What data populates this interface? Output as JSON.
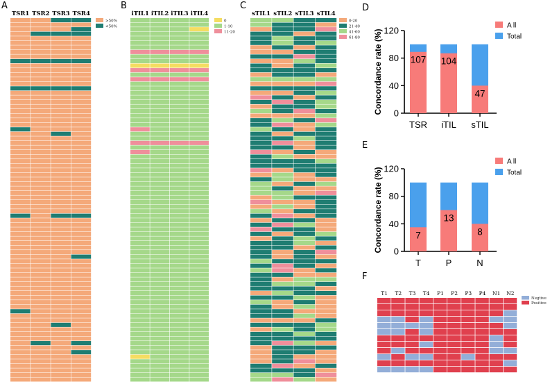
{
  "colors": {
    "orange": "#f4a97a",
    "teal": "#1f7d72",
    "green": "#a5d88a",
    "yellow": "#f5dd62",
    "pink": "#ef8f9b",
    "red_bar": "#f77b79",
    "blue_bar": "#4aa0ec",
    "f_red": "#e0404e",
    "f_blue": "#93aed8"
  },
  "chart_data": [
    {
      "id": "A",
      "type": "heatmap",
      "panel_label": "A",
      "columns": [
        "TSR1",
        "TSR2",
        "TSR3",
        "TSR4"
      ],
      "legend": [
        {
          "label": ">50%",
          "color": "#f4a97a"
        },
        {
          "label": "<50%",
          "color": "#1f7d72"
        }
      ],
      "rows": 80,
      "cells": [
        {
          "row": 0,
          "col": 2,
          "level": 1
        },
        {
          "row": 0,
          "col": 3,
          "level": 1
        },
        {
          "row": 2,
          "col": 3,
          "level": 1
        },
        {
          "row": 3,
          "col": 1,
          "level": 1
        },
        {
          "row": 3,
          "col": 2,
          "level": 1
        },
        {
          "row": 3,
          "col": 3,
          "level": 1
        },
        {
          "row": 9,
          "col": 0,
          "level": 1
        },
        {
          "row": 9,
          "col": 1,
          "level": 1
        },
        {
          "row": 9,
          "col": 2,
          "level": 1
        },
        {
          "row": 9,
          "col": 3,
          "level": 1
        },
        {
          "row": 15,
          "col": 0,
          "level": 1
        },
        {
          "row": 15,
          "col": 1,
          "level": 1
        },
        {
          "row": 15,
          "col": 2,
          "level": 1
        },
        {
          "row": 15,
          "col": 3,
          "level": 1
        },
        {
          "row": 24,
          "col": 0,
          "level": 1
        },
        {
          "row": 25,
          "col": 2,
          "level": 1
        },
        {
          "row": 43,
          "col": 0,
          "level": 1
        },
        {
          "row": 43,
          "col": 2,
          "level": 1
        },
        {
          "row": 43,
          "col": 3,
          "level": 1
        },
        {
          "row": 52,
          "col": 3,
          "level": 1
        },
        {
          "row": 64,
          "col": 0,
          "level": 1
        },
        {
          "row": 67,
          "col": 2,
          "level": 1
        },
        {
          "row": 71,
          "col": 1,
          "level": 1
        },
        {
          "row": 71,
          "col": 3,
          "level": 1
        },
        {
          "row": 73,
          "col": 3,
          "level": 1
        }
      ]
    },
    {
      "id": "B",
      "type": "heatmap",
      "panel_label": "B",
      "columns": [
        "iTIL1",
        "iTIL2",
        "iTIL3",
        "iTIL4"
      ],
      "legend": [
        {
          "label": "0",
          "color": "#f5dd62"
        },
        {
          "label": "1-10",
          "color": "#a5d88a"
        },
        {
          "label": "11-20",
          "color": "#ef8f9b"
        }
      ],
      "rows": 80,
      "cells": [
        {
          "row": 2,
          "col": 3,
          "level": 0
        },
        {
          "row": 7,
          "col": 0,
          "level": 2
        },
        {
          "row": 7,
          "col": 1,
          "level": 2
        },
        {
          "row": 7,
          "col": 2,
          "level": 2
        },
        {
          "row": 7,
          "col": 3,
          "level": 2
        },
        {
          "row": 10,
          "col": 0,
          "level": 0
        },
        {
          "row": 10,
          "col": 1,
          "level": 0
        },
        {
          "row": 10,
          "col": 2,
          "level": 0
        },
        {
          "row": 10,
          "col": 3,
          "level": 0
        },
        {
          "row": 11,
          "col": 0,
          "level": 2
        },
        {
          "row": 11,
          "col": 1,
          "level": 2
        },
        {
          "row": 11,
          "col": 2,
          "level": 2
        },
        {
          "row": 11,
          "col": 3,
          "level": 2
        },
        {
          "row": 13,
          "col": 0,
          "level": 2
        },
        {
          "row": 13,
          "col": 1,
          "level": 2
        },
        {
          "row": 13,
          "col": 2,
          "level": 2
        },
        {
          "row": 13,
          "col": 3,
          "level": 2
        },
        {
          "row": 24,
          "col": 0,
          "level": 2
        },
        {
          "row": 27,
          "col": 0,
          "level": 2
        },
        {
          "row": 27,
          "col": 1,
          "level": 2
        },
        {
          "row": 27,
          "col": 2,
          "level": 2
        },
        {
          "row": 27,
          "col": 3,
          "level": 2
        },
        {
          "row": 29,
          "col": 0,
          "level": 2
        },
        {
          "row": 74,
          "col": 0,
          "level": 0
        }
      ]
    },
    {
      "id": "C",
      "type": "heatmap",
      "panel_label": "C",
      "columns": [
        "sTIL1",
        "sTIL2",
        "sTIL3",
        "sTIL4"
      ],
      "legend": [
        {
          "label": "0-20",
          "color": "#f4a97a"
        },
        {
          "label": "21-40",
          "color": "#1f7d72"
        },
        {
          "label": "41-60",
          "color": "#a5d88a"
        },
        {
          "label": "61-80",
          "color": "#ef8f9b"
        }
      ],
      "rows": 80,
      "cells": []
    },
    {
      "id": "D",
      "type": "bar",
      "panel_label": "D",
      "categories": [
        "TSR",
        "iTIL",
        "sTIL"
      ],
      "series": [
        {
          "name": "A ll",
          "values": [
            89,
            87,
            40
          ],
          "labels": [
            "107",
            "104",
            "47"
          ],
          "color": "#f77b79"
        },
        {
          "name": "Total",
          "values": [
            100,
            100,
            100
          ],
          "color": "#4aa0ec"
        }
      ],
      "ylabel": "Concordance rate (%)",
      "yticks": [
        0,
        40,
        80,
        120
      ],
      "ylim": [
        0,
        120
      ]
    },
    {
      "id": "E",
      "type": "bar",
      "panel_label": "E",
      "categories": [
        "T",
        "P",
        "N"
      ],
      "series": [
        {
          "name": "A ll",
          "values": [
            35,
            60,
            40
          ],
          "labels": [
            "7",
            "13",
            "8"
          ],
          "color": "#f77b79"
        },
        {
          "name": "Total",
          "values": [
            100,
            100,
            100
          ],
          "color": "#4aa0ec"
        }
      ],
      "ylabel": "Concordance rate (%)",
      "yticks": [
        0,
        40,
        80,
        120
      ],
      "ylim": [
        0,
        120
      ]
    },
    {
      "id": "F",
      "type": "heatmap",
      "panel_label": "F",
      "columns": [
        "T1",
        "T2",
        "T3",
        "T4",
        "P1",
        "P2",
        "P3",
        "P4",
        "N1",
        "N2"
      ],
      "legend": [
        {
          "label": "Negtive",
          "color": "#93aed8"
        },
        {
          "label": "Positive",
          "color": "#e0404e"
        }
      ],
      "matrix": [
        [
          1,
          1,
          1,
          1,
          1,
          1,
          1,
          1,
          1,
          1
        ],
        [
          1,
          1,
          1,
          1,
          1,
          1,
          1,
          1,
          1,
          1
        ],
        [
          1,
          1,
          1,
          1,
          1,
          1,
          1,
          1,
          1,
          0
        ],
        [
          0,
          0,
          1,
          0,
          1,
          1,
          1,
          1,
          0,
          0
        ],
        [
          0,
          0,
          0,
          0,
          1,
          1,
          1,
          1,
          1,
          0
        ],
        [
          0,
          0,
          1,
          0,
          1,
          1,
          1,
          1,
          1,
          1
        ],
        [
          1,
          1,
          1,
          1,
          1,
          1,
          1,
          1,
          0,
          1
        ],
        [
          1,
          1,
          1,
          0,
          1,
          1,
          1,
          1,
          0,
          1
        ],
        [
          1,
          0,
          1,
          1,
          1,
          1,
          1,
          1,
          0,
          0
        ],
        [
          0,
          1,
          0,
          0,
          1,
          1,
          0,
          1,
          1,
          1
        ],
        [
          1,
          1,
          1,
          1,
          1,
          1,
          1,
          1,
          1,
          0
        ],
        [
          0,
          0,
          0,
          0,
          1,
          1,
          1,
          1,
          1,
          1
        ]
      ]
    }
  ]
}
